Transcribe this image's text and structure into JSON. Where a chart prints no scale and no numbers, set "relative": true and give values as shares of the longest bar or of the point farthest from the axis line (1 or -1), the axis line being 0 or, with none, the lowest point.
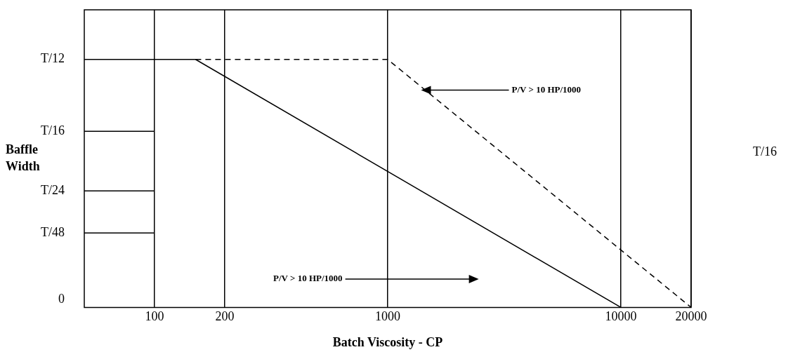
{
  "chart_data": {
    "type": "line",
    "xlabel": "Batch Viscosity - CP",
    "ylabel": "Baffle Width",
    "log": "x",
    "grid": "x",
    "marker": "none",
    "relative": true,
    "xlim": [
      50,
      20000
    ],
    "xticks": [
      100,
      200,
      1000,
      10000,
      20000
    ],
    "series": [
      {
        "color": "#000000",
        "line_style": "solid",
        "x": [
          50,
          150,
          10000
        ],
        "values": [
          1,
          1,
          0
        ]
      },
      {
        "color": "#000000",
        "line_style": "dashed",
        "x": [
          150,
          1000,
          20000
        ],
        "values": [
          1,
          1,
          0
        ]
      },
      {
        "color": "#000000",
        "line_style": "solid",
        "x": [
          50,
          100
        ],
        "values": [
          0.71,
          0.71
        ]
      },
      {
        "color": "#000000",
        "line_style": "solid",
        "x": [
          50,
          100
        ],
        "values": [
          0.47,
          0.47
        ]
      },
      {
        "color": "#000000",
        "line_style": "solid",
        "x": [
          50,
          100
        ],
        "values": [
          0.3,
          0.3
        ]
      }
    ],
    "annotations": [
      "T/12",
      "T/16",
      "T/24",
      "T/48",
      "0",
      "P/V > 10 HP/1000",
      "P/V > 10 HP/1000",
      "T/16"
    ]
  }
}
